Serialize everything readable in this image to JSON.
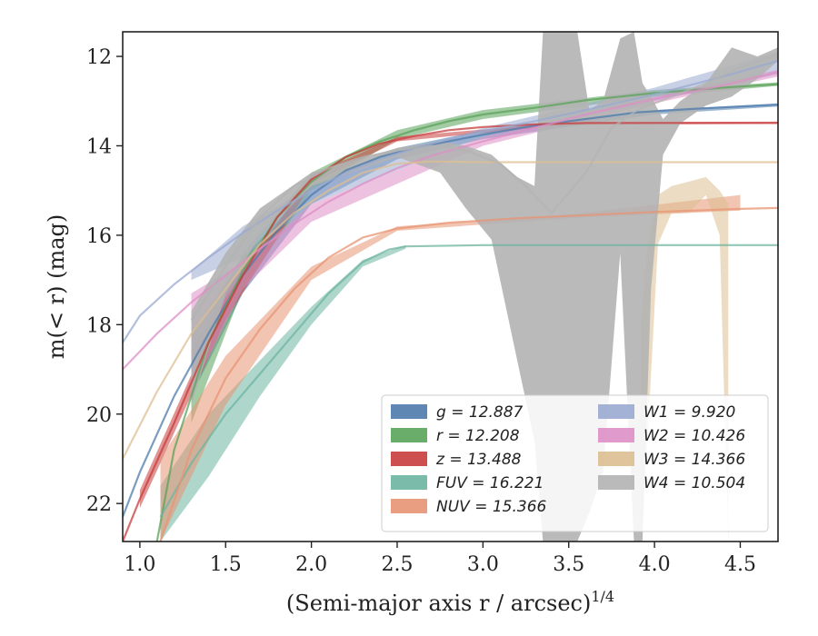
{
  "chart_data": {
    "type": "line",
    "xlabel": "(Semi-major axis r / arcsec)^{1/4}",
    "ylabel": "m(< r) (mag)",
    "xlim": [
      0.9,
      4.72
    ],
    "ylim": [
      22.85,
      11.45
    ],
    "y_inverted": true,
    "xticks": [
      1.0,
      1.5,
      2.0,
      2.5,
      3.0,
      3.5,
      4.0,
      4.5
    ],
    "yticks": [
      12,
      14,
      16,
      18,
      20,
      22
    ],
    "legend_placement": "lower-right",
    "series": [
      {
        "name": "g = 12.887",
        "color": "#4c7bab",
        "points": [
          [
            0.9,
            22.3
          ],
          [
            1.0,
            21.3
          ],
          [
            1.2,
            19.6
          ],
          [
            1.4,
            18.2
          ],
          [
            1.6,
            16.9
          ],
          [
            1.8,
            15.9
          ],
          [
            2.0,
            15.1
          ],
          [
            2.2,
            14.55
          ],
          [
            2.4,
            14.25
          ],
          [
            2.6,
            14.05
          ],
          [
            2.8,
            13.9
          ],
          [
            3.0,
            13.75
          ],
          [
            3.3,
            13.55
          ],
          [
            3.6,
            13.4
          ],
          [
            3.9,
            13.25
          ],
          [
            4.2,
            13.18
          ],
          [
            4.72,
            13.08
          ]
        ],
        "band": [
          [
            1.3,
            18.2,
            19.6
          ],
          [
            1.6,
            16.5,
            17.3
          ],
          [
            2.0,
            14.9,
            15.3
          ],
          [
            2.5,
            14.05,
            14.3
          ],
          [
            3.0,
            13.65,
            13.85
          ],
          [
            4.0,
            13.2,
            13.3
          ],
          [
            4.72,
            13.05,
            13.12
          ]
        ]
      },
      {
        "name": "r = 12.208",
        "color": "#5aa35a",
        "points": [
          [
            1.1,
            22.85
          ],
          [
            1.2,
            20.8
          ],
          [
            1.4,
            18.4
          ],
          [
            1.6,
            16.8
          ],
          [
            1.8,
            15.6
          ],
          [
            2.0,
            14.8
          ],
          [
            2.2,
            14.25
          ],
          [
            2.4,
            13.9
          ],
          [
            2.6,
            13.65
          ],
          [
            2.8,
            13.45
          ],
          [
            3.0,
            13.3
          ],
          [
            3.3,
            13.15
          ],
          [
            3.6,
            12.98
          ],
          [
            4.0,
            12.82
          ],
          [
            4.4,
            12.7
          ],
          [
            4.72,
            12.62
          ]
        ],
        "band": [
          [
            1.3,
            18.6,
            20.2
          ],
          [
            1.6,
            16.4,
            17.2
          ],
          [
            2.0,
            14.6,
            15.0
          ],
          [
            2.5,
            13.65,
            13.85
          ],
          [
            3.0,
            13.2,
            13.4
          ],
          [
            4.0,
            12.75,
            12.9
          ],
          [
            4.72,
            12.58,
            12.66
          ]
        ]
      },
      {
        "name": "z = 13.488",
        "color": "#c83c3c",
        "points": [
          [
            0.9,
            22.85
          ],
          [
            1.0,
            21.9
          ],
          [
            1.2,
            20.2
          ],
          [
            1.4,
            18.4
          ],
          [
            1.6,
            16.9
          ],
          [
            1.8,
            15.6
          ],
          [
            2.0,
            14.75
          ],
          [
            2.2,
            14.25
          ],
          [
            2.4,
            13.95
          ],
          [
            2.6,
            13.78
          ],
          [
            2.8,
            13.65
          ],
          [
            3.0,
            13.58
          ],
          [
            3.3,
            13.52
          ],
          [
            3.6,
            13.49
          ],
          [
            4.0,
            13.488
          ],
          [
            4.72,
            13.488
          ]
        ],
        "band": [
          [
            1.0,
            21.7,
            22.1
          ],
          [
            1.5,
            17.4,
            17.9
          ],
          [
            2.0,
            14.65,
            14.85
          ],
          [
            2.5,
            13.8,
            13.9
          ],
          [
            3.5,
            13.47,
            13.53
          ],
          [
            4.72,
            13.46,
            13.51
          ]
        ]
      },
      {
        "name": "FUV = 16.221",
        "color": "#6db4a0",
        "points": [
          [
            1.12,
            22.3
          ],
          [
            1.3,
            21.1
          ],
          [
            1.5,
            20.0
          ],
          [
            1.7,
            19.1
          ],
          [
            1.9,
            18.2
          ],
          [
            2.1,
            17.3
          ],
          [
            2.3,
            16.6
          ],
          [
            2.45,
            16.32
          ],
          [
            2.55,
            16.25
          ],
          [
            3.0,
            16.221
          ],
          [
            4.72,
            16.221
          ]
        ],
        "band": [
          [
            1.12,
            21.6,
            22.85
          ],
          [
            1.4,
            20.0,
            21.4
          ],
          [
            1.7,
            18.8,
            19.6
          ],
          [
            2.0,
            17.6,
            18.0
          ],
          [
            2.3,
            16.55,
            16.7
          ],
          [
            2.55,
            16.22,
            16.3
          ]
        ]
      },
      {
        "name": "NUV = 15.366",
        "color": "#e89473",
        "points": [
          [
            1.12,
            22.85
          ],
          [
            1.3,
            20.8
          ],
          [
            1.5,
            19.2
          ],
          [
            1.7,
            18.1
          ],
          [
            1.9,
            17.2
          ],
          [
            2.1,
            16.5
          ],
          [
            2.3,
            16.05
          ],
          [
            2.5,
            15.85
          ],
          [
            2.8,
            15.72
          ],
          [
            3.2,
            15.62
          ],
          [
            3.6,
            15.55
          ],
          [
            4.0,
            15.48
          ],
          [
            4.5,
            15.41
          ],
          [
            4.72,
            15.39
          ]
        ],
        "band": [
          [
            1.12,
            21.0,
            22.85
          ],
          [
            1.5,
            18.7,
            19.8
          ],
          [
            2.0,
            16.7,
            17.0
          ],
          [
            2.5,
            15.8,
            15.9
          ],
          [
            3.5,
            15.54,
            15.62
          ],
          [
            4.5,
            15.1,
            15.45
          ]
        ]
      },
      {
        "name": "W1 = 9.920",
        "color": "#9aaad0",
        "points": [
          [
            0.9,
            18.4
          ],
          [
            1.0,
            17.8
          ],
          [
            1.2,
            17.1
          ],
          [
            1.4,
            16.5
          ],
          [
            1.6,
            15.95
          ],
          [
            1.8,
            15.45
          ],
          [
            2.0,
            15.0
          ],
          [
            2.2,
            14.6
          ],
          [
            2.4,
            14.3
          ],
          [
            2.6,
            14.05
          ],
          [
            2.8,
            13.85
          ],
          [
            3.0,
            13.68
          ],
          [
            3.3,
            13.45
          ],
          [
            3.6,
            13.2
          ],
          [
            4.0,
            12.85
          ],
          [
            4.4,
            12.45
          ],
          [
            4.72,
            12.1
          ]
        ],
        "band": [
          [
            1.3,
            16.8,
            17.0
          ],
          [
            1.6,
            15.8,
            16.5
          ],
          [
            2.0,
            14.9,
            15.3
          ],
          [
            3.0,
            13.6,
            13.8
          ],
          [
            4.0,
            12.7,
            13.0
          ],
          [
            4.72,
            11.9,
            12.4
          ]
        ]
      },
      {
        "name": "W2 = 10.426",
        "color": "#de8fc6",
        "points": [
          [
            0.9,
            19.0
          ],
          [
            1.1,
            18.2
          ],
          [
            1.3,
            17.5
          ],
          [
            1.5,
            16.9
          ],
          [
            1.7,
            16.3
          ],
          [
            1.9,
            15.75
          ],
          [
            2.1,
            15.25
          ],
          [
            2.3,
            14.85
          ],
          [
            2.5,
            14.5
          ],
          [
            2.7,
            14.22
          ],
          [
            3.0,
            13.9
          ],
          [
            3.3,
            13.6
          ],
          [
            3.6,
            13.3
          ],
          [
            4.0,
            12.95
          ],
          [
            4.4,
            12.65
          ],
          [
            4.72,
            12.35
          ]
        ],
        "band": [
          [
            1.3,
            17.3,
            19.5
          ],
          [
            1.6,
            16.6,
            17.2
          ],
          [
            2.0,
            15.3,
            15.7
          ],
          [
            3.0,
            13.8,
            14.0
          ],
          [
            4.0,
            12.9,
            13.05
          ],
          [
            4.72,
            12.3,
            12.45
          ]
        ]
      },
      {
        "name": "W3 = 14.366",
        "color": "#ddbf91",
        "points": [
          [
            0.9,
            21.0
          ],
          [
            1.1,
            19.5
          ],
          [
            1.3,
            18.2
          ],
          [
            1.5,
            17.2
          ],
          [
            1.7,
            16.2
          ],
          [
            1.9,
            15.5
          ],
          [
            2.1,
            15.0
          ],
          [
            2.3,
            14.6
          ],
          [
            2.5,
            14.4
          ],
          [
            2.7,
            14.35
          ],
          [
            3.0,
            14.366
          ],
          [
            4.72,
            14.366
          ]
        ],
        "band": [
          [
            3.92,
            18.0,
            22.85
          ],
          [
            3.96,
            16.2,
            20.5
          ],
          [
            4.02,
            15.1,
            16.2
          ],
          [
            4.1,
            14.9,
            15.5
          ],
          [
            4.2,
            14.8,
            15.5
          ],
          [
            4.3,
            14.7,
            15.1
          ],
          [
            4.38,
            15.0,
            16.0
          ],
          [
            4.43,
            15.3,
            22.85
          ]
        ]
      },
      {
        "name": "W4 = 10.504",
        "color": "#b3b3b3",
        "points": [
          [
            1.3,
            17.9
          ],
          [
            1.5,
            16.7
          ],
          [
            1.7,
            15.6
          ],
          [
            1.9,
            14.9
          ],
          [
            2.1,
            14.5
          ],
          [
            2.3,
            14.25
          ],
          [
            2.5,
            14.1
          ],
          [
            2.7,
            14.0
          ],
          [
            2.9,
            14.1
          ],
          [
            3.1,
            14.4
          ],
          [
            3.25,
            14.9
          ],
          [
            3.4,
            15.5
          ],
          [
            3.6,
            14.6
          ],
          [
            3.75,
            13.6
          ],
          [
            3.9,
            13.2
          ],
          [
            4.1,
            12.9
          ],
          [
            4.3,
            12.6
          ],
          [
            4.5,
            12.25
          ],
          [
            4.72,
            11.95
          ]
        ],
        "band": [
          [
            1.3,
            17.7,
            19.8
          ],
          [
            1.5,
            16.4,
            17.3
          ],
          [
            1.7,
            15.4,
            16.0
          ],
          [
            2.0,
            14.6,
            14.9
          ],
          [
            2.5,
            14.05,
            14.25
          ],
          [
            2.75,
            13.9,
            14.6
          ],
          [
            2.9,
            14.0,
            15.4
          ],
          [
            3.05,
            14.2,
            16.1
          ],
          [
            3.2,
            14.7,
            18.8
          ],
          [
            3.3,
            14.9,
            20.6
          ],
          [
            3.35,
            11.45,
            22.85
          ],
          [
            3.45,
            11.45,
            22.85
          ],
          [
            3.55,
            11.45,
            22.85
          ],
          [
            3.62,
            13.2,
            22.2
          ],
          [
            3.7,
            13.0,
            21.3
          ],
          [
            3.8,
            11.6,
            16.4
          ],
          [
            3.88,
            11.45,
            22.85
          ],
          [
            3.93,
            12.6,
            22.85
          ],
          [
            3.98,
            12.9,
            17.2
          ],
          [
            4.05,
            13.4,
            14.2
          ],
          [
            4.15,
            13.0,
            13.5
          ],
          [
            4.3,
            12.6,
            13.1
          ],
          [
            4.45,
            11.8,
            12.9
          ],
          [
            4.6,
            12.0,
            12.5
          ],
          [
            4.72,
            11.8,
            12.1
          ]
        ]
      }
    ]
  }
}
